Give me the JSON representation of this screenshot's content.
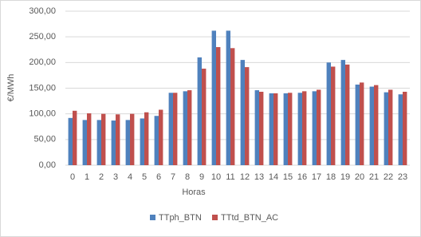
{
  "chart_data": {
    "type": "bar",
    "x_label": "Horas",
    "y_label": "€/MWh",
    "categories": [
      "0",
      "1",
      "2",
      "3",
      "4",
      "5",
      "6",
      "7",
      "8",
      "9",
      "10",
      "11",
      "12",
      "13",
      "14",
      "15",
      "16",
      "17",
      "18",
      "19",
      "20",
      "21",
      "22",
      "23"
    ],
    "series": [
      {
        "name": "TTph_BTN",
        "color": "#4f81bd",
        "values": [
          92,
          88,
          88,
          87,
          88,
          91,
          96,
          141,
          144,
          210,
          262,
          262,
          205,
          146,
          140,
          140,
          141,
          144,
          200,
          205,
          157,
          153,
          142,
          138
        ]
      },
      {
        "name": "TTtd_BTN_AC",
        "color": "#c0504d",
        "values": [
          106,
          101,
          100,
          99,
          100,
          103,
          108,
          141,
          146,
          188,
          230,
          228,
          191,
          143,
          140,
          141,
          144,
          147,
          192,
          196,
          161,
          156,
          147,
          143
        ]
      }
    ],
    "ylim": [
      0,
      300
    ],
    "yticks": [
      {
        "value": 0,
        "label": "0,00"
      },
      {
        "value": 50,
        "label": "50,00"
      },
      {
        "value": 100,
        "label": "100,00"
      },
      {
        "value": 150,
        "label": "150,00"
      },
      {
        "value": 200,
        "label": "200,00"
      },
      {
        "value": 250,
        "label": "250,00"
      },
      {
        "value": 300,
        "label": "300,00"
      }
    ],
    "grid": true,
    "legend": "bottom"
  }
}
